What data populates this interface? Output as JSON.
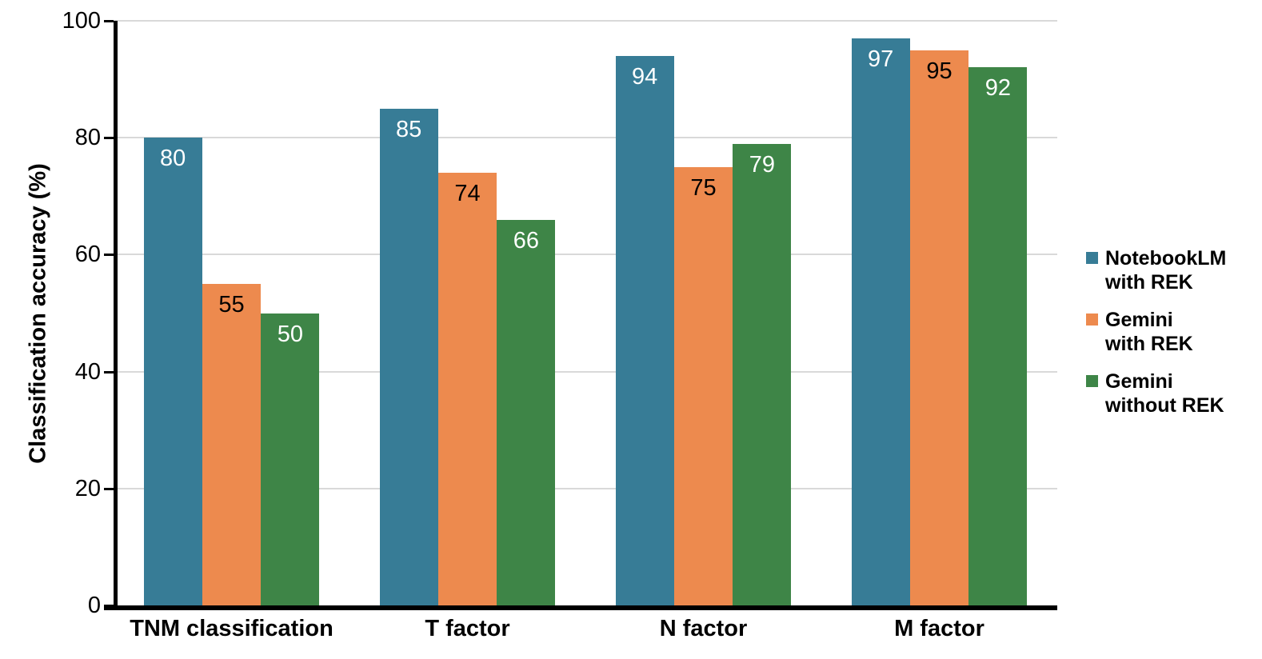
{
  "chart_data": {
    "type": "bar",
    "title": "",
    "ylabel": "Classification accuracy (%)",
    "xlabel": "",
    "ylim": [
      0,
      100
    ],
    "yticks": [
      0,
      20,
      40,
      60,
      80,
      100
    ],
    "grid": true,
    "gridline_color": "#d9d9d9",
    "axis_color": "#000000",
    "legend_position": "right",
    "categories": [
      "TNM classification",
      "T factor",
      "N factor",
      "M factor"
    ],
    "series": [
      {
        "name": "NotebookLM with REK",
        "legend_lines": [
          "NotebookLM",
          "with REK"
        ],
        "color": "#377c96",
        "label_color": "#ffffff",
        "values": [
          80,
          85,
          94,
          97
        ]
      },
      {
        "name": "Gemini with REK",
        "legend_lines": [
          "Gemini",
          "with REK"
        ],
        "color": "#ed8a4e",
        "label_color": "#000000",
        "values": [
          55,
          74,
          75,
          95
        ]
      },
      {
        "name": "Gemini without REK",
        "legend_lines": [
          "Gemini",
          "without REK"
        ],
        "color": "#3e8547",
        "label_color": "#ffffff",
        "values": [
          50,
          66,
          79,
          92
        ]
      }
    ]
  }
}
